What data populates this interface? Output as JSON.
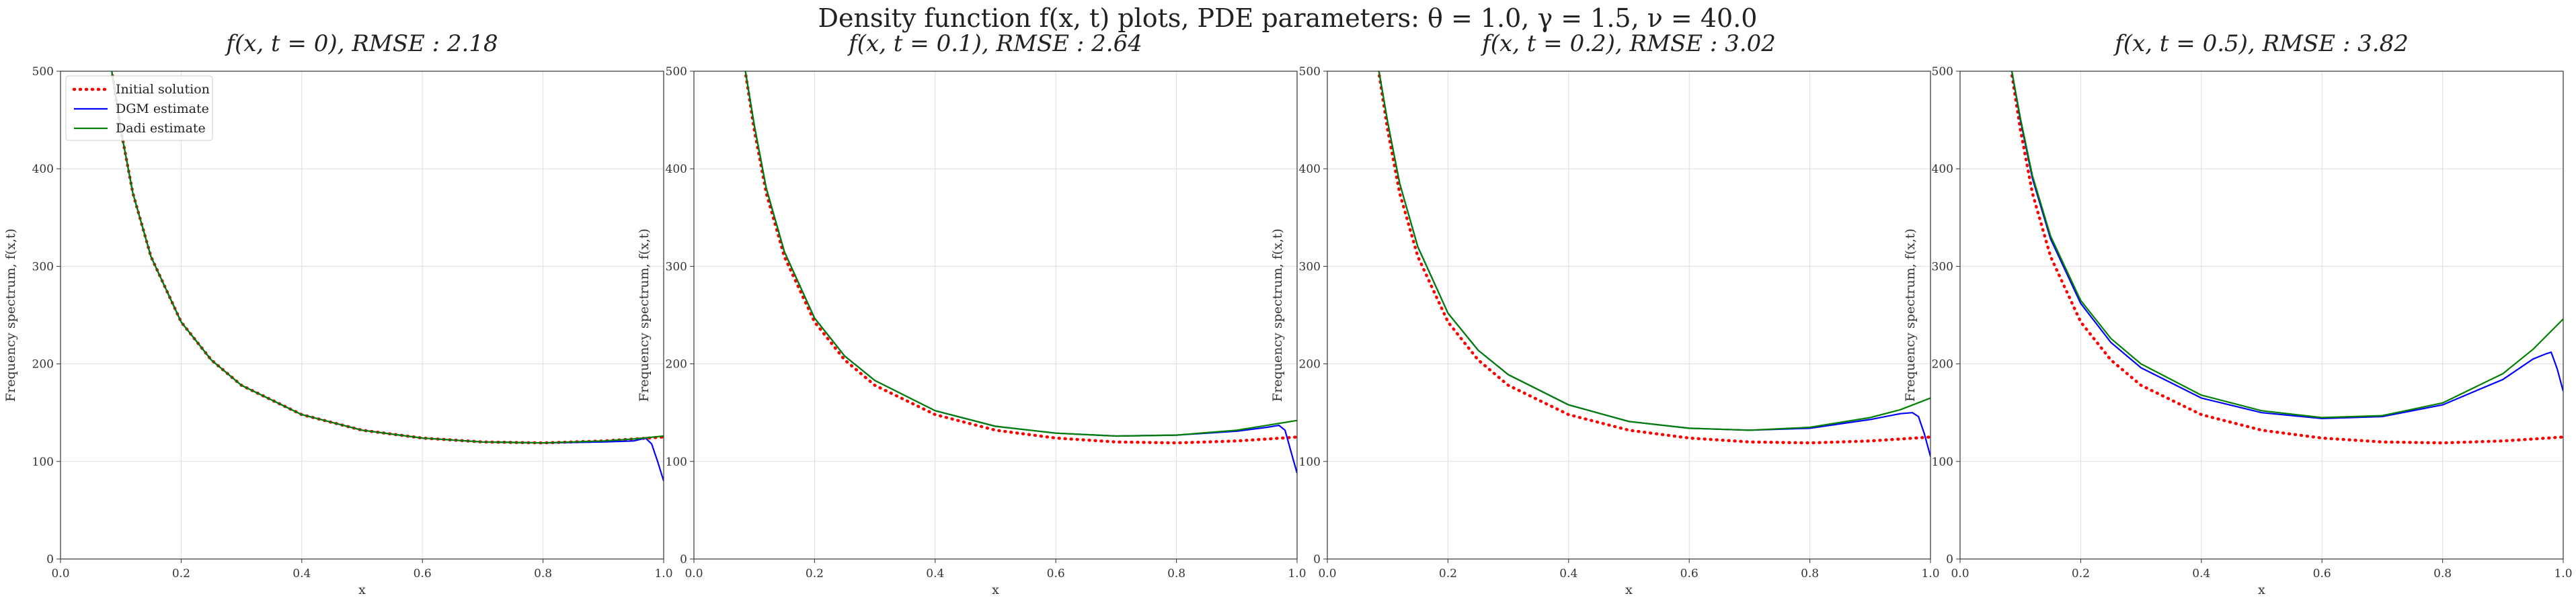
{
  "figure": {
    "suptitle": "Density function f(x, t) plots, PDE parameters: θ = 1.0, γ = 1.5, ν = 40.0"
  },
  "legend": {
    "entries": [
      {
        "label": "Initial solution",
        "color": "#ff0000",
        "style": "dotted"
      },
      {
        "label": "DGM estimate",
        "color": "#0000ff",
        "style": "solid"
      },
      {
        "label": "Dadi estimate",
        "color": "#008000",
        "style": "solid"
      }
    ],
    "placement": "upper-left of first panel"
  },
  "chart_data": [
    {
      "type": "line",
      "title": "f(x, t = 0), RMSE : 2.18",
      "xlabel": "x",
      "ylabel": "Frequency spectrum, f(x,t)",
      "xlim": [
        0.0,
        1.0
      ],
      "ylim": [
        0,
        500
      ],
      "xticks": [
        "0.0",
        "0.2",
        "0.4",
        "0.6",
        "0.8",
        "1.0"
      ],
      "yticks": [
        "0",
        "100",
        "200",
        "300",
        "400",
        "500"
      ],
      "grid": true,
      "series": [
        {
          "name": "Initial solution",
          "color": "#ff0000",
          "style": "dotted",
          "x": [
            0.08,
            0.1,
            0.12,
            0.15,
            0.2,
            0.25,
            0.3,
            0.4,
            0.5,
            0.6,
            0.7,
            0.8,
            0.9,
            0.95,
            1.0
          ],
          "y": [
            520,
            440,
            375,
            310,
            243,
            204,
            178,
            148,
            132,
            124,
            120,
            119,
            121,
            123,
            125
          ]
        },
        {
          "name": "DGM estimate",
          "color": "#0000ff",
          "style": "solid",
          "x": [
            0.08,
            0.1,
            0.12,
            0.15,
            0.2,
            0.25,
            0.3,
            0.4,
            0.5,
            0.6,
            0.7,
            0.8,
            0.9,
            0.95,
            0.97,
            0.98,
            0.99,
            1.0
          ],
          "y": [
            520,
            440,
            375,
            310,
            243,
            204,
            178,
            148,
            132,
            124,
            120,
            119,
            120,
            121,
            124,
            118,
            100,
            80
          ]
        },
        {
          "name": "Dadi estimate",
          "color": "#008000",
          "style": "solid",
          "x": [
            0.08,
            0.1,
            0.12,
            0.15,
            0.2,
            0.25,
            0.3,
            0.4,
            0.5,
            0.6,
            0.7,
            0.8,
            0.9,
            0.95,
            1.0
          ],
          "y": [
            520,
            440,
            375,
            310,
            243,
            204,
            178,
            148,
            132,
            124,
            120,
            119,
            121,
            123,
            126
          ]
        }
      ]
    },
    {
      "type": "line",
      "title": "f(x, t = 0.1), RMSE : 2.64",
      "xlabel": "x",
      "ylabel": "Frequency spectrum, f(x,t)",
      "xlim": [
        0.0,
        1.0
      ],
      "ylim": [
        0,
        500
      ],
      "xticks": [
        "0.0",
        "0.2",
        "0.4",
        "0.6",
        "0.8",
        "1.0"
      ],
      "yticks": [
        "0",
        "100",
        "200",
        "300",
        "400",
        "500"
      ],
      "grid": true,
      "series": [
        {
          "name": "Initial solution",
          "color": "#ff0000",
          "style": "dotted",
          "x": [
            0.08,
            0.1,
            0.12,
            0.15,
            0.2,
            0.25,
            0.3,
            0.4,
            0.5,
            0.6,
            0.7,
            0.8,
            0.9,
            0.95,
            1.0
          ],
          "y": [
            520,
            440,
            375,
            310,
            243,
            204,
            178,
            148,
            132,
            124,
            120,
            119,
            121,
            123,
            125
          ]
        },
        {
          "name": "DGM estimate",
          "color": "#0000ff",
          "style": "solid",
          "x": [
            0.08,
            0.1,
            0.12,
            0.15,
            0.2,
            0.25,
            0.3,
            0.4,
            0.5,
            0.6,
            0.7,
            0.8,
            0.9,
            0.95,
            0.97,
            0.98,
            0.99,
            1.0
          ],
          "y": [
            520,
            445,
            380,
            315,
            247,
            208,
            183,
            152,
            136,
            129,
            126,
            127,
            131,
            135,
            137,
            132,
            110,
            88
          ]
        },
        {
          "name": "Dadi estimate",
          "color": "#008000",
          "style": "solid",
          "x": [
            0.08,
            0.1,
            0.12,
            0.15,
            0.2,
            0.25,
            0.3,
            0.4,
            0.5,
            0.6,
            0.7,
            0.8,
            0.9,
            0.95,
            1.0
          ],
          "y": [
            520,
            445,
            380,
            315,
            247,
            208,
            183,
            152,
            136,
            129,
            126,
            127,
            132,
            137,
            142
          ]
        }
      ]
    },
    {
      "type": "line",
      "title": "f(x, t = 0.2), RMSE : 3.02",
      "xlabel": "x",
      "ylabel": "Frequency spectrum, f(x,t)",
      "xlim": [
        0.0,
        1.0
      ],
      "ylim": [
        0,
        500
      ],
      "xticks": [
        "0.0",
        "0.2",
        "0.4",
        "0.6",
        "0.8",
        "1.0"
      ],
      "yticks": [
        "0",
        "100",
        "200",
        "300",
        "400",
        "500"
      ],
      "grid": true,
      "series": [
        {
          "name": "Initial solution",
          "color": "#ff0000",
          "style": "dotted",
          "x": [
            0.08,
            0.1,
            0.12,
            0.15,
            0.2,
            0.25,
            0.3,
            0.4,
            0.5,
            0.6,
            0.7,
            0.8,
            0.9,
            0.95,
            1.0
          ],
          "y": [
            520,
            440,
            375,
            310,
            243,
            204,
            178,
            148,
            132,
            124,
            120,
            119,
            121,
            123,
            125
          ]
        },
        {
          "name": "DGM estimate",
          "color": "#0000ff",
          "style": "solid",
          "x": [
            0.08,
            0.1,
            0.12,
            0.15,
            0.2,
            0.25,
            0.3,
            0.4,
            0.5,
            0.6,
            0.7,
            0.8,
            0.9,
            0.95,
            0.97,
            0.98,
            0.99,
            1.0
          ],
          "y": [
            520,
            448,
            385,
            320,
            252,
            214,
            189,
            158,
            141,
            134,
            132,
            134,
            143,
            149,
            150,
            146,
            128,
            105
          ]
        },
        {
          "name": "Dadi estimate",
          "color": "#008000",
          "style": "solid",
          "x": [
            0.08,
            0.1,
            0.12,
            0.15,
            0.2,
            0.25,
            0.3,
            0.4,
            0.5,
            0.6,
            0.7,
            0.8,
            0.9,
            0.95,
            1.0
          ],
          "y": [
            520,
            448,
            385,
            320,
            252,
            214,
            189,
            158,
            141,
            134,
            132,
            135,
            145,
            153,
            165
          ]
        }
      ]
    },
    {
      "type": "line",
      "title": "f(x, t = 0.5), RMSE : 3.82",
      "xlabel": "x",
      "ylabel": "Frequency spectrum, f(x,t)",
      "xlim": [
        0.0,
        1.0
      ],
      "ylim": [
        0,
        500
      ],
      "xticks": [
        "0.0",
        "0.2",
        "0.4",
        "0.6",
        "0.8",
        "1.0"
      ],
      "yticks": [
        "0",
        "100",
        "200",
        "300",
        "400",
        "500"
      ],
      "grid": true,
      "series": [
        {
          "name": "Initial solution",
          "color": "#ff0000",
          "style": "dotted",
          "x": [
            0.08,
            0.1,
            0.12,
            0.15,
            0.2,
            0.25,
            0.3,
            0.4,
            0.5,
            0.6,
            0.7,
            0.8,
            0.9,
            0.95,
            1.0
          ],
          "y": [
            520,
            440,
            375,
            310,
            243,
            204,
            178,
            148,
            132,
            124,
            120,
            119,
            121,
            123,
            125
          ]
        },
        {
          "name": "DGM estimate",
          "color": "#0000ff",
          "style": "solid",
          "x": [
            0.08,
            0.1,
            0.12,
            0.15,
            0.2,
            0.25,
            0.3,
            0.4,
            0.5,
            0.6,
            0.7,
            0.8,
            0.9,
            0.95,
            0.97,
            0.98,
            0.99,
            1.0
          ],
          "y": [
            520,
            450,
            390,
            328,
            262,
            222,
            196,
            165,
            150,
            144,
            146,
            158,
            184,
            205,
            210,
            212,
            195,
            172
          ]
        },
        {
          "name": "Dadi estimate",
          "color": "#008000",
          "style": "solid",
          "x": [
            0.08,
            0.1,
            0.12,
            0.15,
            0.2,
            0.25,
            0.3,
            0.4,
            0.5,
            0.6,
            0.7,
            0.8,
            0.9,
            0.95,
            1.0
          ],
          "y": [
            520,
            452,
            393,
            331,
            265,
            226,
            200,
            168,
            152,
            145,
            147,
            160,
            190,
            215,
            246
          ]
        }
      ]
    }
  ]
}
